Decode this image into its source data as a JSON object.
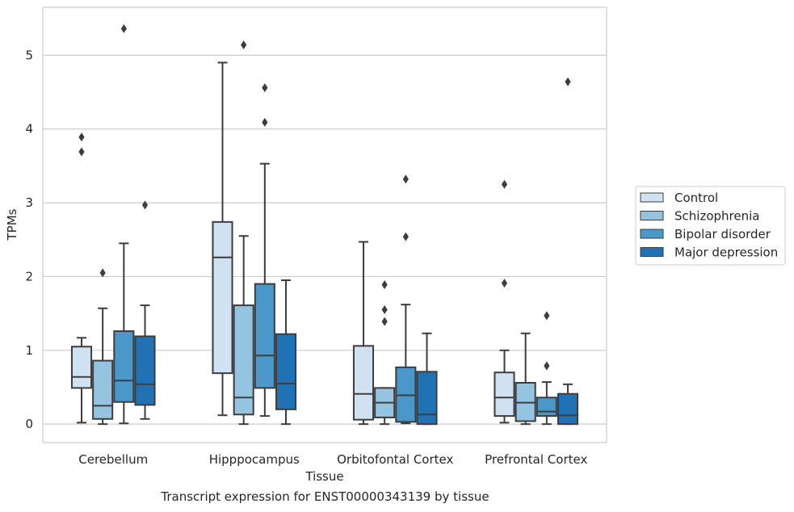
{
  "caption": "Transcript expression for ENST00000343139 by tissue",
  "chart_data": {
    "type": "box",
    "xlabel": "Tissue",
    "ylabel": "TPMs",
    "ylim": [
      -0.25,
      5.65
    ],
    "yticks": [
      0,
      1,
      2,
      3,
      4,
      5
    ],
    "grid": "horizontal",
    "legend_position": "right",
    "categories": [
      "Cerebellum",
      "Hipppocampus",
      "Orbitofontal Cortex",
      "Prefrontal Cortex"
    ],
    "series": [
      {
        "name": "Control",
        "color": "#d0e1f2",
        "boxes": [
          {
            "whislo": 0.02,
            "q1": 0.49,
            "med": 0.64,
            "q3": 1.05,
            "whishi": 1.17,
            "fliers": [
              3.69,
              3.89
            ]
          },
          {
            "whislo": 0.12,
            "q1": 0.69,
            "med": 2.26,
            "q3": 2.74,
            "whishi": 4.9,
            "fliers": []
          },
          {
            "whislo": 0.0,
            "q1": 0.06,
            "med": 0.41,
            "q3": 1.06,
            "whishi": 2.47,
            "fliers": []
          },
          {
            "whislo": 0.02,
            "q1": 0.11,
            "med": 0.36,
            "q3": 0.7,
            "whishi": 1.0,
            "fliers": [
              1.91,
              3.25
            ]
          }
        ]
      },
      {
        "name": "Schizophrenia",
        "color": "#94c4df",
        "boxes": [
          {
            "whislo": 0.0,
            "q1": 0.07,
            "med": 0.25,
            "q3": 0.86,
            "whishi": 1.57,
            "fliers": [
              2.05
            ]
          },
          {
            "whislo": 0.0,
            "q1": 0.13,
            "med": 0.36,
            "q3": 1.61,
            "whishi": 2.55,
            "fliers": [
              5.14
            ]
          },
          {
            "whislo": 0.0,
            "q1": 0.09,
            "med": 0.29,
            "q3": 0.49,
            "whishi": 0.49,
            "fliers": [
              1.39,
              1.55,
              1.89
            ]
          },
          {
            "whislo": 0.0,
            "q1": 0.04,
            "med": 0.29,
            "q3": 0.56,
            "whishi": 1.23,
            "fliers": []
          }
        ]
      },
      {
        "name": "Bipolar disorder",
        "color": "#4a98c9",
        "boxes": [
          {
            "whislo": 0.01,
            "q1": 0.3,
            "med": 0.59,
            "q3": 1.26,
            "whishi": 2.45,
            "fliers": [
              5.36
            ]
          },
          {
            "whislo": 0.11,
            "q1": 0.49,
            "med": 0.93,
            "q3": 1.9,
            "whishi": 3.53,
            "fliers": [
              4.09,
              4.56
            ]
          },
          {
            "whislo": 0.01,
            "q1": 0.03,
            "med": 0.39,
            "q3": 0.77,
            "whishi": 1.62,
            "fliers": [
              2.54,
              3.32
            ]
          },
          {
            "whislo": 0.0,
            "q1": 0.11,
            "med": 0.17,
            "q3": 0.36,
            "whishi": 0.57,
            "fliers": [
              0.79,
              1.47
            ]
          }
        ]
      },
      {
        "name": "Major depression",
        "color": "#2171b5",
        "boxes": [
          {
            "whislo": 0.07,
            "q1": 0.26,
            "med": 0.54,
            "q3": 1.19,
            "whishi": 1.61,
            "fliers": [
              2.97
            ]
          },
          {
            "whislo": 0.0,
            "q1": 0.2,
            "med": 0.55,
            "q3": 1.22,
            "whishi": 1.95,
            "fliers": []
          },
          {
            "whislo": 0.0,
            "q1": 0.0,
            "med": 0.13,
            "q3": 0.71,
            "whishi": 1.23,
            "fliers": []
          },
          {
            "whislo": 0.0,
            "q1": 0.0,
            "med": 0.12,
            "q3": 0.41,
            "whishi": 0.54,
            "fliers": [
              4.64
            ]
          }
        ]
      }
    ]
  }
}
